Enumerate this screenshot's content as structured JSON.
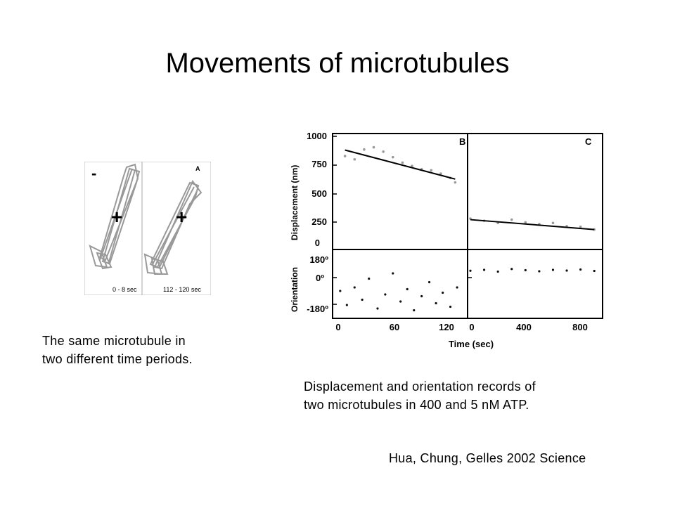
{
  "slide": {
    "title": "Movements of microtubules",
    "caption_left_line1": "The same microtubule in",
    "caption_left_line2": "two different time periods.",
    "caption_right_line1": "Displacement and orientation records of",
    "caption_right_line2": "two microtubules in 400 and 5 nM ATP.",
    "citation": "Hua, Chung, Gelles 2002 Science"
  },
  "figure_a": {
    "panel_label": "A",
    "minus_label": "-",
    "plus_label": "+",
    "time_left": "0 - 8 sec",
    "time_right": "112 - 120 sec"
  },
  "figure_bc": {
    "panel_b": "B",
    "panel_c": "C",
    "ylabel_top": "Displacement (nm)",
    "ylabel_bottom": "Orientation",
    "xlabel": "Time (sec)",
    "yticks_top": [
      "1000",
      "750",
      "500",
      "250",
      "0"
    ],
    "yticks_bottom": [
      "180º",
      "0º",
      "-180º"
    ],
    "xticks_b": [
      "0",
      "60",
      "120"
    ],
    "xticks_c": [
      "0",
      "400",
      "800"
    ]
  },
  "chart_data": [
    {
      "type": "scatter",
      "panel": "B",
      "ylabel": "Displacement (nm)",
      "xlabel": "Time (sec)",
      "xlim": [
        0,
        135
      ],
      "ylim": [
        0,
        1000
      ],
      "fit_line": {
        "x": [
          10,
          125
        ],
        "y": [
          875,
          610
        ]
      },
      "x": [
        10,
        20,
        30,
        40,
        50,
        60,
        70,
        80,
        90,
        100,
        110,
        120,
        125
      ],
      "y": [
        820,
        790,
        880,
        900,
        860,
        810,
        760,
        730,
        700,
        690,
        660,
        620,
        580
      ]
    },
    {
      "type": "scatter",
      "panel": "C",
      "ylabel": "Displacement (nm)",
      "xlabel": "Time (sec)",
      "xlim": [
        0,
        950
      ],
      "ylim": [
        0,
        1000
      ],
      "fit_line": {
        "x": [
          0,
          900
        ],
        "y": [
          240,
          150
        ]
      },
      "x": [
        0,
        100,
        200,
        300,
        400,
        500,
        600,
        700,
        800,
        900
      ],
      "y": [
        250,
        230,
        210,
        240,
        215,
        200,
        210,
        180,
        175,
        150
      ]
    },
    {
      "type": "scatter",
      "panel": "B-orientation",
      "ylabel": "Orientation",
      "xlabel": "Time (sec)",
      "xlim": [
        0,
        135
      ],
      "ylim": [
        -180,
        180
      ],
      "x": [
        5,
        12,
        20,
        28,
        35,
        44,
        52,
        60,
        68,
        75,
        82,
        90,
        98,
        105,
        112,
        120,
        127
      ],
      "y": [
        -40,
        -120,
        -20,
        -90,
        30,
        -140,
        -60,
        60,
        -100,
        -30,
        -150,
        -70,
        10,
        -110,
        -50,
        -130,
        -20
      ]
    },
    {
      "type": "scatter",
      "panel": "C-orientation",
      "ylabel": "Orientation",
      "xlabel": "Time (sec)",
      "xlim": [
        0,
        950
      ],
      "ylim": [
        -180,
        180
      ],
      "x": [
        0,
        100,
        200,
        300,
        400,
        500,
        600,
        700,
        800,
        900
      ],
      "y": [
        75,
        80,
        70,
        85,
        78,
        72,
        80,
        76,
        82,
        74
      ]
    }
  ]
}
